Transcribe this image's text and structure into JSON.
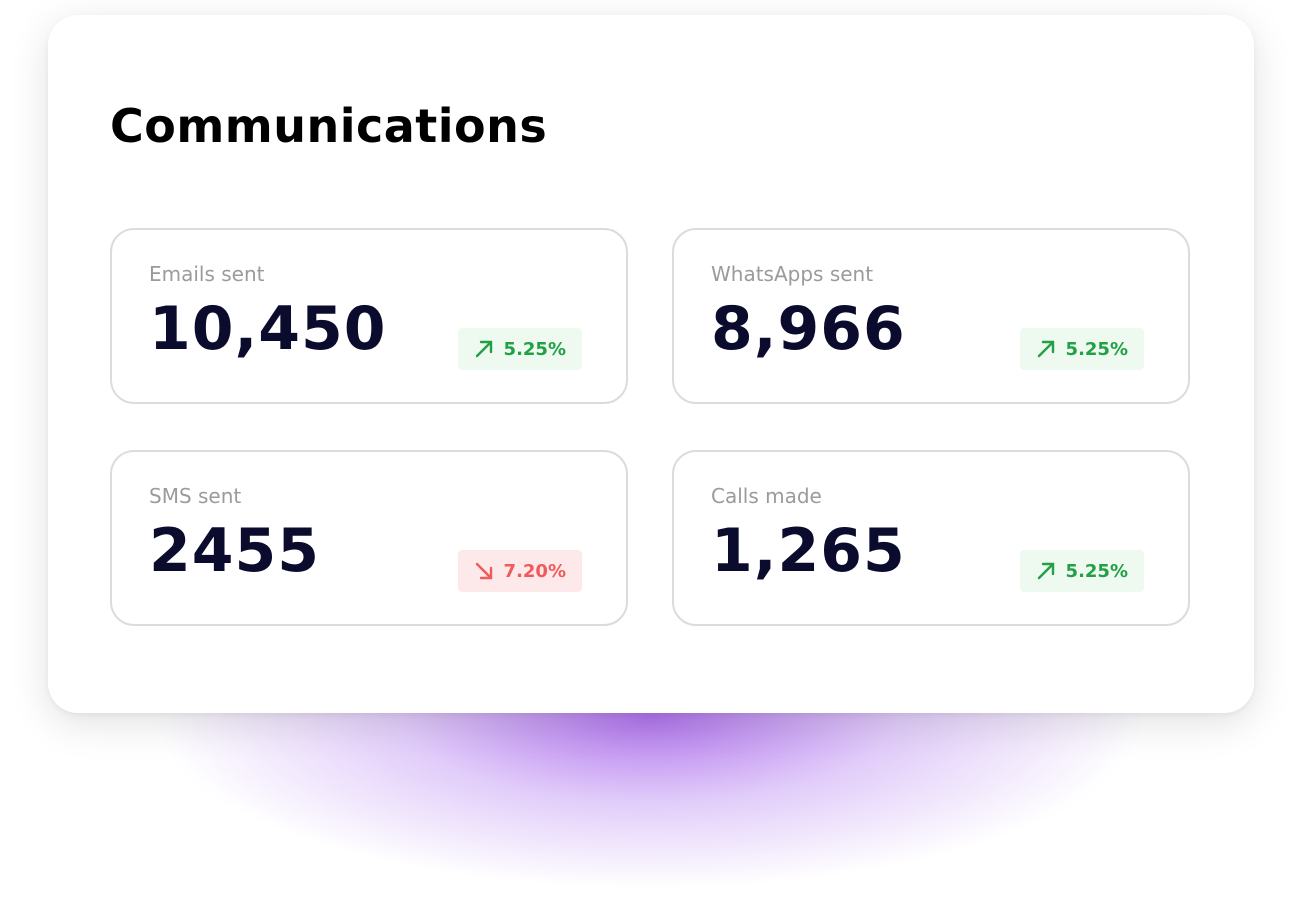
{
  "header": {
    "title": "Communications"
  },
  "cards": [
    {
      "label": "Emails sent",
      "value": "10,450",
      "change": "5.25%",
      "trend": "up"
    },
    {
      "label": "WhatsApps sent",
      "value": "8,966",
      "change": "5.25%",
      "trend": "up"
    },
    {
      "label": "SMS sent",
      "value": "2455",
      "change": "7.20%",
      "trend": "down"
    },
    {
      "label": "Calls made",
      "value": "1,265",
      "change": "5.25%",
      "trend": "up"
    }
  ]
}
